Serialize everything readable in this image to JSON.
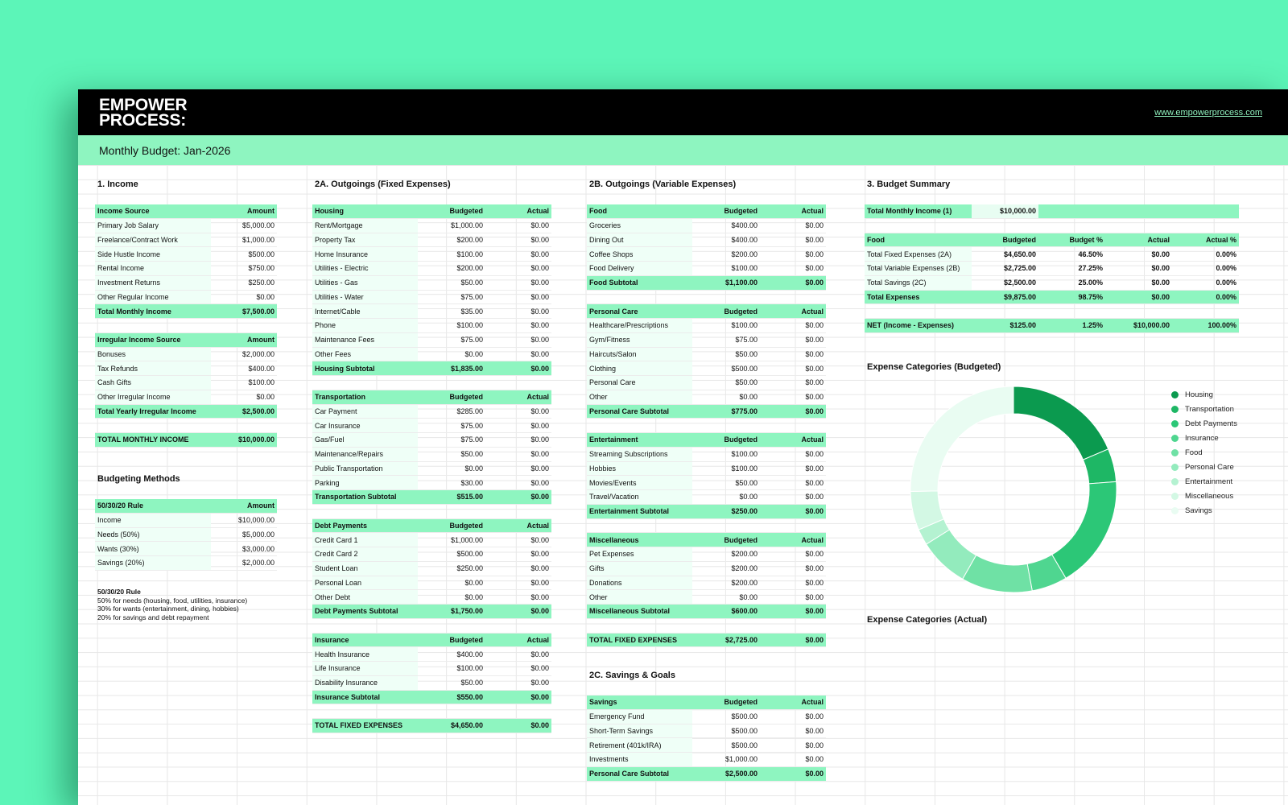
{
  "header": {
    "logo_line1": "EMPOWER",
    "logo_line2": "PROCESS:",
    "url": "www.empowerprocess.com"
  },
  "title": "Monthly Budget: Jan-2026",
  "income": {
    "section": "1. Income",
    "regular": {
      "head": [
        "Income Source",
        "Amount"
      ],
      "rows": [
        [
          "Primary Job Salary",
          "$5,000.00"
        ],
        [
          "Freelance/Contract Work",
          "$1,000.00"
        ],
        [
          "Side Hustle Income",
          "$500.00"
        ],
        [
          "Rental Income",
          "$750.00"
        ],
        [
          "Investment Returns",
          "$250.00"
        ],
        [
          "Other Regular Income",
          "$0.00"
        ]
      ],
      "total": [
        "Total Monthly Income",
        "$7,500.00"
      ]
    },
    "irregular": {
      "head": [
        "Irregular Income Source",
        "Amount"
      ],
      "rows": [
        [
          "Bonuses",
          "$2,000.00"
        ],
        [
          "Tax Refunds",
          "$400.00"
        ],
        [
          "Cash Gifts",
          "$100.00"
        ],
        [
          "Other Irregular Income",
          "$0.00"
        ]
      ],
      "total": [
        "Total Yearly Irregular Income",
        "$2,500.00"
      ]
    },
    "grand": [
      "TOTAL MONTHLY INCOME",
      "$10,000.00"
    ]
  },
  "methods": {
    "section": "Budgeting Methods",
    "table": {
      "head": [
        "50/30/20 Rule",
        "Amount"
      ],
      "rows": [
        [
          "Income",
          "$10,000.00"
        ],
        [
          "Needs (50%)",
          "$5,000.00"
        ],
        [
          "Wants (30%)",
          "$3,000.00"
        ],
        [
          "Savings (20%)",
          "$2,000.00"
        ]
      ]
    },
    "note_title": "50/30/20 Rule",
    "note_lines": [
      "50% for needs (housing, food, utilities, insurance)",
      "30% for wants (entertainment, dining, hobbies)",
      "20% for savings and debt repayment"
    ]
  },
  "fixed": {
    "section": "2A. Outgoings (Fixed Expenses)",
    "housing": {
      "head": [
        "Housing",
        "Budgeted",
        "Actual"
      ],
      "rows": [
        [
          "Rent/Mortgage",
          "$1,000.00",
          "$0.00"
        ],
        [
          "Property Tax",
          "$200.00",
          "$0.00"
        ],
        [
          "Home Insurance",
          "$100.00",
          "$0.00"
        ],
        [
          "Utilities - Electric",
          "$200.00",
          "$0.00"
        ],
        [
          "Utilities - Gas",
          "$50.00",
          "$0.00"
        ],
        [
          "Utilities - Water",
          "$75.00",
          "$0.00"
        ],
        [
          "Internet/Cable",
          "$35.00",
          "$0.00"
        ],
        [
          "Phone",
          "$100.00",
          "$0.00"
        ],
        [
          "Maintenance Fees",
          "$75.00",
          "$0.00"
        ],
        [
          "Other Fees",
          "$0.00",
          "$0.00"
        ]
      ],
      "total": [
        "Housing Subtotal",
        "$1,835.00",
        "$0.00"
      ]
    },
    "transport": {
      "head": [
        "Transportation",
        "Budgeted",
        "Actual"
      ],
      "rows": [
        [
          "Car Payment",
          "$285.00",
          "$0.00"
        ],
        [
          "Car Insurance",
          "$75.00",
          "$0.00"
        ],
        [
          "Gas/Fuel",
          "$75.00",
          "$0.00"
        ],
        [
          "Maintenance/Repairs",
          "$50.00",
          "$0.00"
        ],
        [
          "Public Transportation",
          "$0.00",
          "$0.00"
        ],
        [
          "Parking",
          "$30.00",
          "$0.00"
        ]
      ],
      "total": [
        "Transportation Subtotal",
        "$515.00",
        "$0.00"
      ]
    },
    "debt": {
      "head": [
        "Debt Payments",
        "Budgeted",
        "Actual"
      ],
      "rows": [
        [
          "Credit Card 1",
          "$1,000.00",
          "$0.00"
        ],
        [
          "Credit Card 2",
          "$500.00",
          "$0.00"
        ],
        [
          "Student Loan",
          "$250.00",
          "$0.00"
        ],
        [
          "Personal Loan",
          "$0.00",
          "$0.00"
        ],
        [
          "Other Debt",
          "$0.00",
          "$0.00"
        ]
      ],
      "total": [
        "Debt Payments Subtotal",
        "$1,750.00",
        "$0.00"
      ]
    },
    "insurance": {
      "head": [
        "Insurance",
        "Budgeted",
        "Actual"
      ],
      "rows": [
        [
          "Health Insurance",
          "$400.00",
          "$0.00"
        ],
        [
          "Life Insurance",
          "$100.00",
          "$0.00"
        ],
        [
          "Disability Insurance",
          "$50.00",
          "$0.00"
        ]
      ],
      "total": [
        "Insurance Subtotal",
        "$550.00",
        "$0.00"
      ]
    },
    "grand": [
      "TOTAL FIXED EXPENSES",
      "$4,650.00",
      "$0.00"
    ]
  },
  "variable": {
    "section": "2B. Outgoings (Variable Expenses)",
    "food": {
      "head": [
        "Food",
        "Budgeted",
        "Actual"
      ],
      "rows": [
        [
          "Groceries",
          "$400.00",
          "$0.00"
        ],
        [
          "Dining Out",
          "$400.00",
          "$0.00"
        ],
        [
          "Coffee Shops",
          "$200.00",
          "$0.00"
        ],
        [
          "Food Delivery",
          "$100.00",
          "$0.00"
        ]
      ],
      "total": [
        "Food Subtotal",
        "$1,100.00",
        "$0.00"
      ]
    },
    "personal": {
      "head": [
        "Personal Care",
        "Budgeted",
        "Actual"
      ],
      "rows": [
        [
          "Healthcare/Prescriptions",
          "$100.00",
          "$0.00"
        ],
        [
          "Gym/Fitness",
          "$75.00",
          "$0.00"
        ],
        [
          "Haircuts/Salon",
          "$50.00",
          "$0.00"
        ],
        [
          "Clothing",
          "$500.00",
          "$0.00"
        ],
        [
          "Personal Care",
          "$50.00",
          "$0.00"
        ],
        [
          "Other",
          "$0.00",
          "$0.00"
        ]
      ],
      "total": [
        "Personal Care Subtotal",
        "$775.00",
        "$0.00"
      ]
    },
    "entertainment": {
      "head": [
        "Entertainment",
        "Budgeted",
        "Actual"
      ],
      "rows": [
        [
          "Streaming Subscriptions",
          "$100.00",
          "$0.00"
        ],
        [
          "Hobbies",
          "$100.00",
          "$0.00"
        ],
        [
          "Movies/Events",
          "$50.00",
          "$0.00"
        ],
        [
          "Travel/Vacation",
          "$0.00",
          "$0.00"
        ]
      ],
      "total": [
        "Entertainment Subtotal",
        "$250.00",
        "$0.00"
      ]
    },
    "misc": {
      "head": [
        "Miscellaneous",
        "Budgeted",
        "Actual"
      ],
      "rows": [
        [
          "Pet Expenses",
          "$200.00",
          "$0.00"
        ],
        [
          "Gifts",
          "$200.00",
          "$0.00"
        ],
        [
          "Donations",
          "$200.00",
          "$0.00"
        ],
        [
          "Other",
          "$0.00",
          "$0.00"
        ]
      ],
      "total": [
        "Miscellaneous Subtotal",
        "$600.00",
        "$0.00"
      ]
    },
    "grand": [
      "TOTAL FIXED EXPENSES",
      "$2,725.00",
      "$0.00"
    ]
  },
  "savings": {
    "section": "2C. Savings & Goals",
    "table": {
      "head": [
        "Savings",
        "Budgeted",
        "Actual"
      ],
      "rows": [
        [
          "Emergency Fund",
          "$500.00",
          "$0.00"
        ],
        [
          "Short-Term Savings",
          "$500.00",
          "$0.00"
        ],
        [
          "Retirement (401k/IRA)",
          "$500.00",
          "$0.00"
        ],
        [
          "Investments",
          "$1,000.00",
          "$0.00"
        ]
      ],
      "total": [
        "Personal Care Subtotal",
        "$2,500.00",
        "$0.00"
      ]
    }
  },
  "summary": {
    "section": "3. Budget Summary",
    "income_row": [
      "Total Monthly Income (1)",
      "$10,000.00"
    ],
    "head": [
      "Food",
      "Budgeted",
      "Budget %",
      "Actual",
      "Actual %"
    ],
    "rows": [
      [
        "Total Fixed Expenses (2A)",
        "$4,650.00",
        "46.50%",
        "$0.00",
        "0.00%"
      ],
      [
        "Total Variable Expenses (2B)",
        "$2,725.00",
        "27.25%",
        "$0.00",
        "0.00%"
      ],
      [
        "Total Savings (2C)",
        "$2,500.00",
        "25.00%",
        "$0.00",
        "0.00%"
      ]
    ],
    "total": [
      "Total Expenses",
      "$9,875.00",
      "98.75%",
      "$0.00",
      "0.00%"
    ],
    "net": [
      "NET (Income - Expenses)",
      "$125.00",
      "1.25%",
      "$10,000.00",
      "100.00%"
    ]
  },
  "chart_budgeted_title": "Expense Categories (Budgeted)",
  "chart_actual_title": "Expense Categories (Actual)",
  "chart_data": {
    "type": "pie",
    "title": "Expense Categories (Budgeted)",
    "variant": "donut",
    "legend_position": "right",
    "categories": [
      "Housing",
      "Transportation",
      "Debt Payments",
      "Insurance",
      "Food",
      "Personal Care",
      "Entertainment",
      "Miscellaneous",
      "Savings"
    ],
    "values": [
      1835,
      515,
      1750,
      550,
      1100,
      775,
      250,
      600,
      2500
    ],
    "colors": [
      "#0b9a4f",
      "#1eb765",
      "#2cc777",
      "#4fd690",
      "#6fe1a5",
      "#93ebbd",
      "#b4f2d1",
      "#d3f8e4",
      "#e9fcf2"
    ]
  }
}
